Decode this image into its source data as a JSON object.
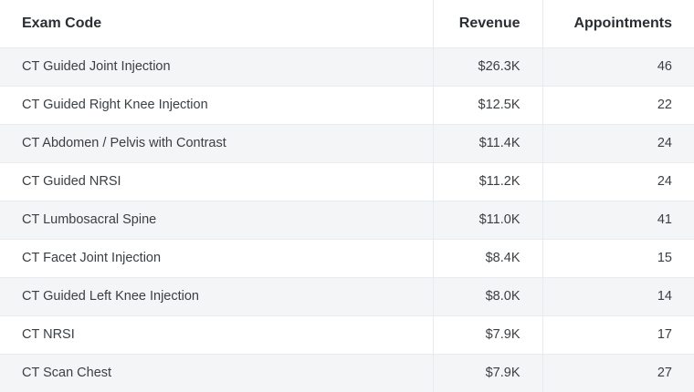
{
  "table": {
    "headers": [
      "Exam Code",
      "Revenue",
      "Appointments"
    ],
    "rows": [
      [
        "CT Guided Joint Injection",
        "$26.3K",
        "46"
      ],
      [
        "CT Guided Right Knee Injection",
        "$12.5K",
        "22"
      ],
      [
        "CT Abdomen / Pelvis with Contrast",
        "$11.4K",
        "24"
      ],
      [
        "CT Guided NRSI",
        "$11.2K",
        "24"
      ],
      [
        "CT Lumbosacral Spine",
        "$11.0K",
        "41"
      ],
      [
        "CT Facet Joint Injection",
        "$8.4K",
        "15"
      ],
      [
        "CT Guided Left Knee Injection",
        "$8.0K",
        "14"
      ],
      [
        "CT NRSI",
        "$7.9K",
        "17"
      ],
      [
        "CT Scan Chest",
        "$7.9K",
        "27"
      ]
    ]
  }
}
